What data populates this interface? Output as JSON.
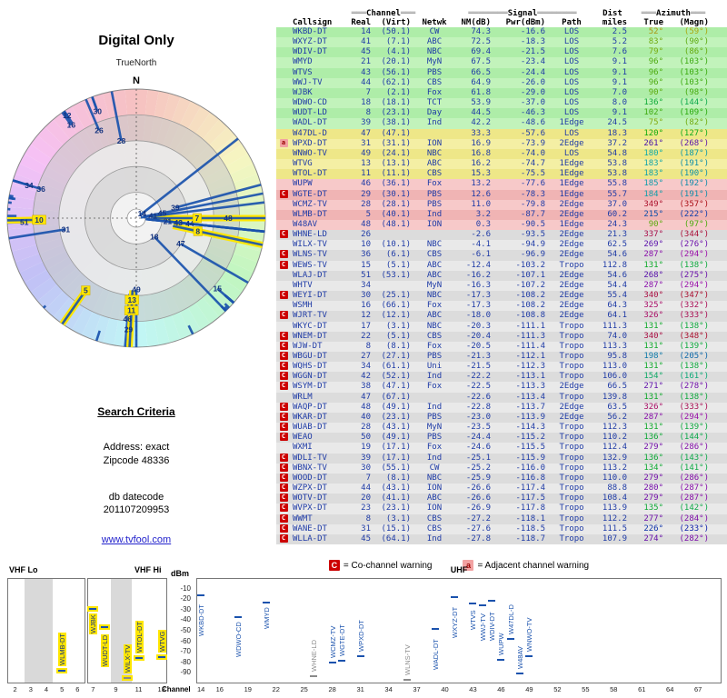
{
  "meta": {
    "title": "Digital Only"
  },
  "radar": {
    "north": "N",
    "true_north": "TrueNorth"
  },
  "search": {
    "heading": "Search Criteria",
    "address": "Address: exact",
    "zipcode": "Zipcode 48336",
    "db_label": "db datecode",
    "db_value": "201107209953"
  },
  "link": {
    "text": "www.tvfool.com"
  },
  "legend": {
    "co_label": "C",
    "co_text": "= Co-channel warning",
    "adj_label": "a",
    "adj_text": "= Adjacent channel warning"
  },
  "table": {
    "group_headers": {
      "channel": "Channel",
      "signal": "Signal",
      "dist": "Dist",
      "azimuth": "Azimuth",
      "channel_bars": "═══",
      "signal_bars": "════════",
      "azimuth_bars": "═══"
    },
    "columns": [
      "Callsign",
      "Real",
      "(Virt)",
      "Netwk",
      "NM(dB)",
      "Pwr(dBm)",
      "Path",
      "miles",
      "True",
      "(Magn)"
    ],
    "row_fields": [
      "callsign",
      "real_channel",
      "virtual_channel",
      "network",
      "nm_db",
      "pwr_dbm",
      "path",
      "dist_miles",
      "azimuth_true_deg",
      "azimuth_magnetic_deg",
      "warning"
    ],
    "rows": [
      [
        "WKBD-DT",
        14,
        "(50.1)",
        "CW",
        74.3,
        -16.6,
        "LOS",
        2.5,
        52,
        59,
        ""
      ],
      [
        "WXYZ-DT",
        41,
        "(7.1)",
        "ABC",
        72.5,
        -18.3,
        "LOS",
        5.2,
        83,
        90,
        ""
      ],
      [
        "WDIV-DT",
        45,
        "(4.1)",
        "NBC",
        69.4,
        -21.5,
        "LOS",
        7.6,
        79,
        86,
        ""
      ],
      [
        "WMYD",
        21,
        "(20.1)",
        "MyN",
        67.5,
        -23.4,
        "LOS",
        9.1,
        96,
        103,
        ""
      ],
      [
        "WTVS",
        43,
        "(56.1)",
        "PBS",
        66.5,
        -24.4,
        "LOS",
        9.1,
        96,
        103,
        ""
      ],
      [
        "WWJ-TV",
        44,
        "(62.1)",
        "CBS",
        64.9,
        -26.0,
        "LOS",
        9.1,
        96,
        103,
        ""
      ],
      [
        "WJBK",
        7,
        "(2.1)",
        "Fox",
        61.8,
        -29.0,
        "LOS",
        7.0,
        90,
        98,
        ""
      ],
      [
        "WDWO-CD",
        18,
        "(18.1)",
        "TCT",
        53.9,
        -37.0,
        "LOS",
        8.0,
        136,
        144,
        ""
      ],
      [
        "WUDT-LD",
        8,
        "(23.1)",
        "Day",
        44.5,
        -46.3,
        "LOS",
        9.1,
        102,
        109,
        ""
      ],
      [
        "WADL-DT",
        39,
        "(38.1)",
        "Ind",
        42.2,
        -48.6,
        "1Edge",
        24.5,
        75,
        82,
        ""
      ],
      [
        "W47DL-D",
        47,
        "(47.1)",
        "",
        33.3,
        -57.6,
        "LOS",
        18.3,
        120,
        127,
        ""
      ],
      [
        "WPXD-DT",
        31,
        "(31.1)",
        "ION",
        16.9,
        -73.9,
        "2Edge",
        37.2,
        261,
        268,
        "a"
      ],
      [
        "WNWO-TV",
        49,
        "(24.1)",
        "NBC",
        16.8,
        -74.0,
        "LOS",
        54.8,
        180,
        187,
        ""
      ],
      [
        "WTVG",
        13,
        "(13.1)",
        "ABC",
        16.2,
        -74.7,
        "1Edge",
        53.8,
        183,
        191,
        ""
      ],
      [
        "WTOL-DT",
        11,
        "(11.1)",
        "CBS",
        15.3,
        -75.5,
        "1Edge",
        53.8,
        183,
        190,
        ""
      ],
      [
        "WUPW",
        46,
        "(36.1)",
        "Fox",
        13.2,
        -77.6,
        "1Edge",
        55.8,
        185,
        192,
        ""
      ],
      [
        "WGTE-DT",
        29,
        "(30.1)",
        "PBS",
        12.6,
        -78.3,
        "1Edge",
        55.7,
        184,
        191,
        "C"
      ],
      [
        "WCMZ-TV",
        28,
        "(28.1)",
        "PBS",
        11.0,
        -79.8,
        "2Edge",
        37.0,
        349,
        357,
        ""
      ],
      [
        "WLMB-DT",
        5,
        "(40.1)",
        "Ind",
        3.2,
        -87.7,
        "2Edge",
        60.2,
        215,
        222,
        ""
      ],
      [
        "W48AV",
        48,
        "(48.1)",
        "ION",
        0.3,
        -90.5,
        "1Edge",
        24.3,
        90,
        97,
        ""
      ],
      [
        "WHNE-LD",
        26,
        "",
        "",
        -2.6,
        -93.5,
        "2Edge",
        21.3,
        337,
        344,
        "C"
      ],
      [
        "WILX-TV",
        10,
        "(10.1)",
        "NBC",
        -4.1,
        -94.9,
        "2Edge",
        62.5,
        269,
        276,
        ""
      ],
      [
        "WLNS-TV",
        36,
        "(6.1)",
        "CBS",
        -6.1,
        -96.9,
        "2Edge",
        54.6,
        287,
        294,
        "C"
      ],
      [
        "WEWS-TV",
        15,
        "(5.1)",
        "ABC",
        -12.4,
        -103.2,
        "Tropo",
        112.8,
        131,
        138,
        "C"
      ],
      [
        "WLAJ-DT",
        51,
        "(53.1)",
        "ABC",
        -16.2,
        -107.1,
        "2Edge",
        54.6,
        268,
        275,
        ""
      ],
      [
        "WHTV",
        34,
        "",
        "MyN",
        -16.3,
        -107.2,
        "2Edge",
        54.4,
        287,
        294,
        ""
      ],
      [
        "WEYI-DT",
        30,
        "(25.1)",
        "NBC",
        -17.3,
        -108.2,
        "2Edge",
        55.4,
        340,
        347,
        "C"
      ],
      [
        "WSMH",
        16,
        "(66.1)",
        "Fox",
        -17.3,
        -108.2,
        "2Edge",
        64.3,
        325,
        332,
        ""
      ],
      [
        "WJRT-TV",
        12,
        "(12.1)",
        "ABC",
        -18.0,
        -108.8,
        "2Edge",
        64.1,
        326,
        333,
        "C"
      ],
      [
        "WKYC-DT",
        17,
        "(3.1)",
        "NBC",
        -20.3,
        -111.1,
        "Tropo",
        111.3,
        131,
        138,
        ""
      ],
      [
        "WNEM-DT",
        22,
        "(5.1)",
        "CBS",
        -20.4,
        -111.3,
        "Tropo",
        74.0,
        340,
        348,
        "C"
      ],
      [
        "WJW-DT",
        8,
        "(8.1)",
        "Fox",
        -20.5,
        -111.4,
        "Tropo",
        113.3,
        131,
        139,
        "C"
      ],
      [
        "WBGU-DT",
        27,
        "(27.1)",
        "PBS",
        -21.3,
        -112.1,
        "Tropo",
        95.8,
        198,
        205,
        "C"
      ],
      [
        "WQHS-DT",
        34,
        "(61.1)",
        "Uni",
        -21.5,
        -112.3,
        "Tropo",
        113.0,
        131,
        138,
        "C"
      ],
      [
        "WGGN-DT",
        42,
        "(52.1)",
        "Ind",
        -22.2,
        -113.1,
        "Tropo",
        106.0,
        154,
        161,
        "C"
      ],
      [
        "WSYM-DT",
        38,
        "(47.1)",
        "Fox",
        -22.5,
        -113.3,
        "2Edge",
        66.5,
        271,
        278,
        "C"
      ],
      [
        "WRLM",
        47,
        "(67.1)",
        "",
        -22.6,
        -113.4,
        "Tropo",
        139.8,
        131,
        138,
        ""
      ],
      [
        "WAQP-DT",
        48,
        "(49.1)",
        "Ind",
        -22.8,
        -113.7,
        "2Edge",
        63.5,
        326,
        333,
        "C"
      ],
      [
        "WKAR-DT",
        40,
        "(23.1)",
        "PBS",
        -23.0,
        -113.9,
        "2Edge",
        56.2,
        287,
        294,
        "C"
      ],
      [
        "WUAB-DT",
        28,
        "(43.1)",
        "MyN",
        -23.5,
        -114.3,
        "Tropo",
        112.3,
        131,
        139,
        "C"
      ],
      [
        "WEAO",
        50,
        "(49.1)",
        "PBS",
        -24.4,
        -115.2,
        "Tropo",
        110.2,
        136,
        144,
        "C"
      ],
      [
        "WXMI",
        19,
        "(17.1)",
        "Fox",
        -24.6,
        -115.5,
        "Tropo",
        112.4,
        279,
        286,
        ""
      ],
      [
        "WDLI-TV",
        39,
        "(17.1)",
        "Ind",
        -25.1,
        -115.9,
        "Tropo",
        132.9,
        136,
        143,
        "C"
      ],
      [
        "WBNX-TV",
        30,
        "(55.1)",
        "CW",
        -25.2,
        -116.0,
        "Tropo",
        113.2,
        134,
        141,
        "C"
      ],
      [
        "WOOD-DT",
        7,
        "(8.1)",
        "NBC",
        -25.9,
        -116.8,
        "Tropo",
        110.0,
        279,
        286,
        "C"
      ],
      [
        "WZPX-DT",
        44,
        "(43.1)",
        "ION",
        -26.6,
        -117.4,
        "Tropo",
        88.8,
        280,
        287,
        "C"
      ],
      [
        "WOTV-DT",
        20,
        "(41.1)",
        "ABC",
        -26.6,
        -117.5,
        "Tropo",
        108.4,
        279,
        287,
        "C"
      ],
      [
        "WVPX-DT",
        23,
        "(23.1)",
        "ION",
        -26.9,
        -117.8,
        "Tropo",
        113.9,
        135,
        142,
        "C"
      ],
      [
        "WWMT",
        8,
        "(3.1)",
        "CBS",
        -27.2,
        -118.1,
        "Tropo",
        112.2,
        277,
        284,
        "C"
      ],
      [
        "WANE-DT",
        31,
        "(15.1)",
        "CBS",
        -27.6,
        -118.5,
        "Tropo",
        111.5,
        226,
        233,
        "C"
      ],
      [
        "WLLA-DT",
        45,
        "(64.1)",
        "Ind",
        -27.8,
        -118.7,
        "Tropo",
        107.9,
        274,
        282,
        "C"
      ]
    ]
  },
  "highlights": [
    "WJBK",
    "WUDT-LD",
    "WTOL-DT",
    "WTVG",
    "WLMB-DT",
    "WILX-TV"
  ],
  "chart": {
    "dbm_label": "dBm",
    "channel_label": "Channel",
    "band_labels": [
      "VHF Lo",
      "VHF Hi",
      "UHF"
    ],
    "yticks": [
      -10,
      -20,
      -30,
      -40,
      -50,
      -60,
      -70,
      -80,
      -90
    ],
    "lo_ticks": [
      2,
      3,
      4,
      5,
      6
    ],
    "hi_ticks": [
      7,
      9,
      11,
      13
    ],
    "uhf_ticks": [
      14,
      16,
      19,
      22,
      25,
      28,
      31,
      34,
      37,
      40,
      43,
      46,
      49,
      52,
      55,
      58,
      61,
      64,
      67
    ]
  },
  "colors": {
    "text_navy": "#1f3ba6",
    "spoke_blue": "#1a52ad",
    "warn_red": "#cc0000",
    "warn_pink": "#f2a2a2",
    "highlight_yellow": "#ffe600",
    "label_gray": "#8a8a8a",
    "row_green": "#aeeda8",
    "row_yellow": "#eee788",
    "row_pink": "#f0b4b4",
    "row_gray": "#dcdcdc"
  }
}
